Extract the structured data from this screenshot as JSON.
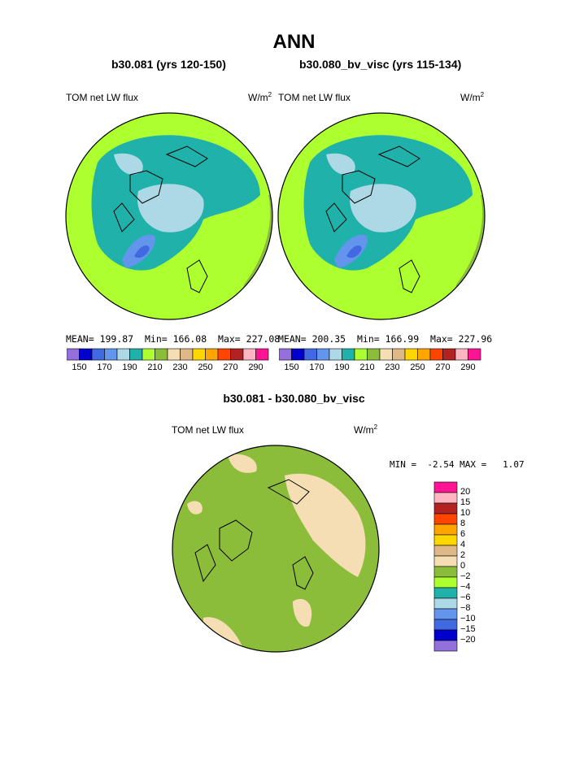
{
  "page": {
    "title": "ANN",
    "panel_left_title": "b30.081 (yrs 120-150)",
    "panel_right_title": "b30.080_bv_visc (yrs 115-134)",
    "diff_title": "b30.081 - b30.080_bv_visc"
  },
  "chart_data": [
    {
      "type": "heatmap",
      "projection": "north polar stereographic",
      "title": "b30.081 (yrs 120-150)",
      "field": "TOM net LW flux",
      "units": "W/m",
      "units_exp": "2",
      "stats": {
        "mean_label": "MEAN=",
        "mean": "199.87",
        "min_label": "Min=",
        "min": "166.08",
        "max_label": "Max=",
        "max": "227.08"
      },
      "colorbar_labels": [
        "150",
        "170",
        "190",
        "210",
        "230",
        "250",
        "270",
        "290"
      ]
    },
    {
      "type": "heatmap",
      "projection": "north polar stereographic",
      "title": "b30.080_bv_visc (yrs 115-134)",
      "field": "TOM net LW flux",
      "units": "W/m",
      "units_exp": "2",
      "stats": {
        "mean_label": "MEAN=",
        "mean": "200.35",
        "min_label": "Min=",
        "min": "166.99",
        "max_label": "Max=",
        "max": "227.96"
      },
      "colorbar_labels": [
        "150",
        "170",
        "190",
        "210",
        "230",
        "250",
        "270",
        "290"
      ]
    },
    {
      "type": "heatmap",
      "projection": "north polar stereographic",
      "title": "b30.081 - b30.080_bv_visc",
      "field": "TOM net LW flux",
      "units": "W/m",
      "units_exp": "2",
      "minmax": {
        "min_label": "MIN =",
        "min": "-2.54",
        "max_label": "MAX =",
        "max": "1.07"
      },
      "colorbar_labels": [
        "20",
        "15",
        "10",
        "8",
        "6",
        "4",
        "2",
        "0",
        "−2",
        "−4",
        "−6",
        "−8",
        "−10",
        "−15",
        "−20"
      ]
    }
  ],
  "palettes": {
    "abs": [
      "#9370db",
      "#0000cd",
      "#4169e1",
      "#6495ed",
      "#add8e6",
      "#20b2aa",
      "#adff2f",
      "#8cbd3a",
      "#f5deb3",
      "#deb887",
      "#ffd700",
      "#ffa500",
      "#ff4500",
      "#b22222",
      "#ffb6c1",
      "#ff1493"
    ],
    "diff_top_to_bottom": [
      "#ff1493",
      "#ffb6c1",
      "#b22222",
      "#ff4500",
      "#ffa500",
      "#ffd700",
      "#deb887",
      "#f5deb3",
      "#8cbd3a",
      "#adff2f",
      "#20b2aa",
      "#add8e6",
      "#6495ed",
      "#4169e1",
      "#0000cd",
      "#9370db"
    ]
  }
}
